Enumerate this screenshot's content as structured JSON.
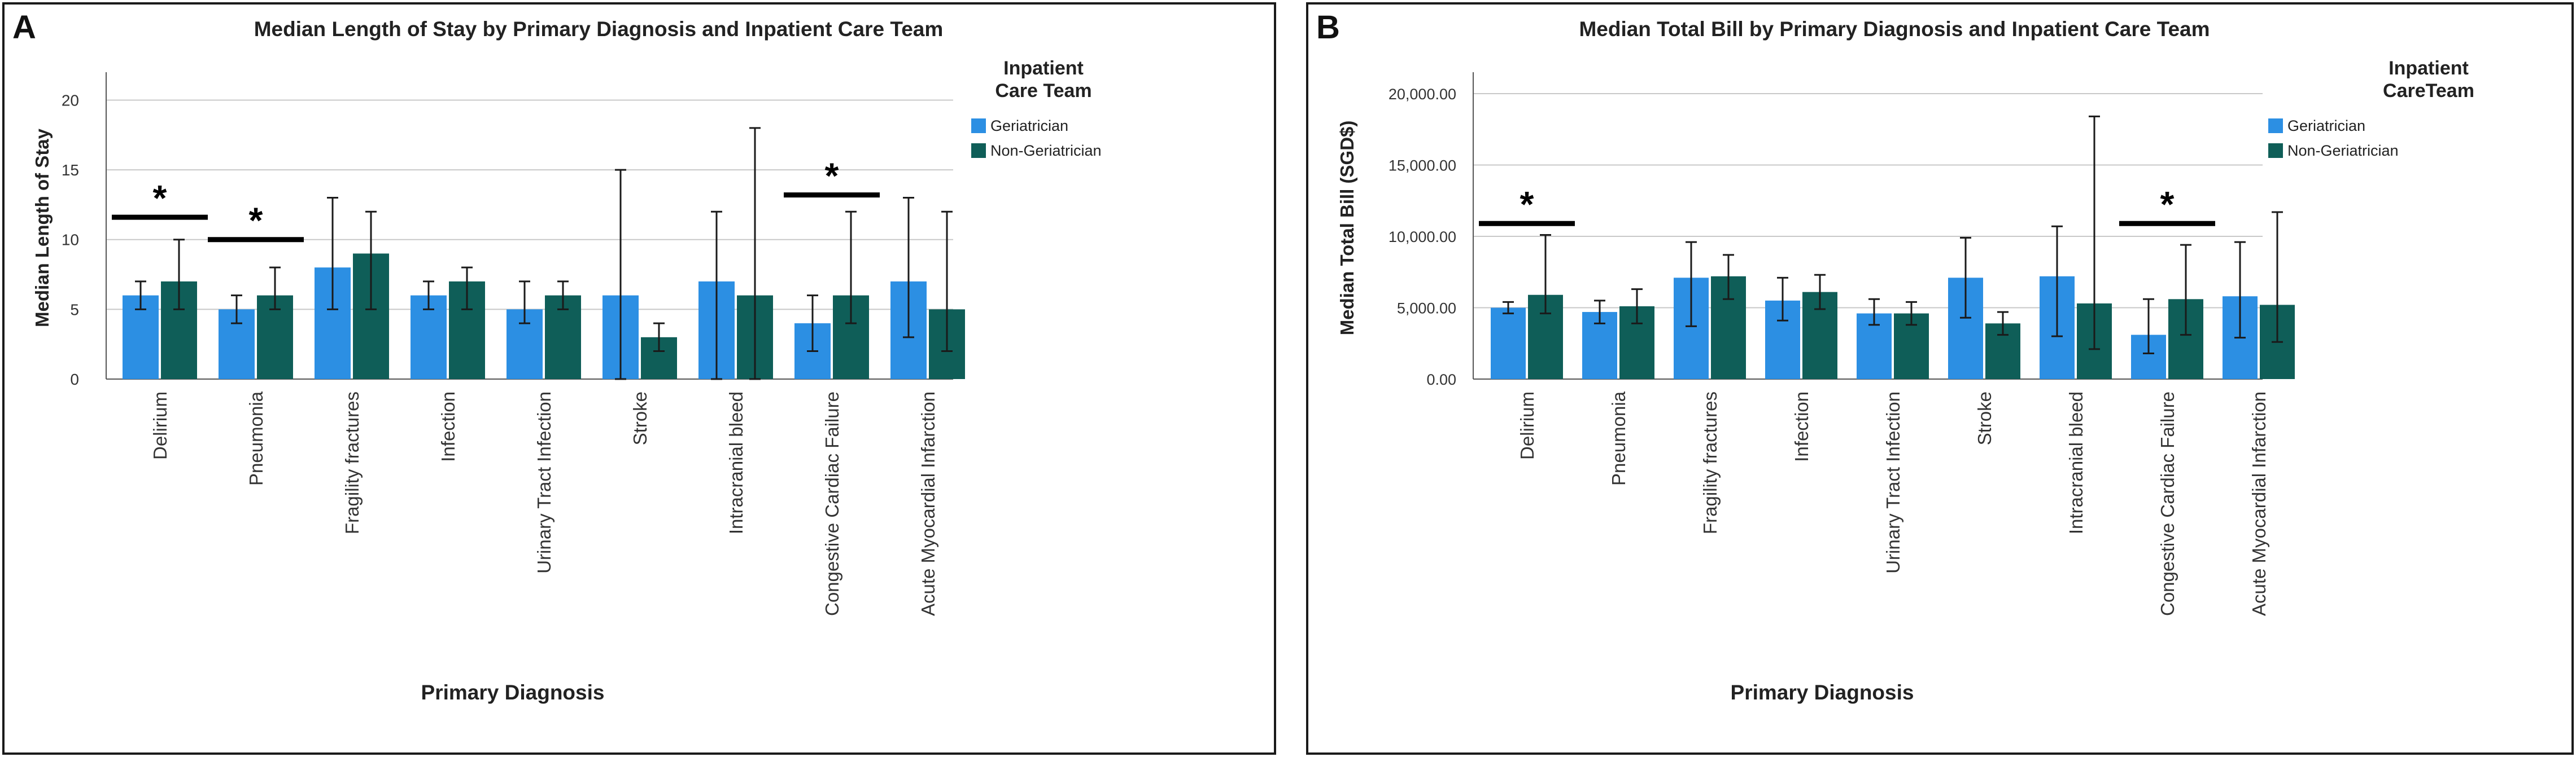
{
  "colors": {
    "geriatrician": "#2c8fe3",
    "non_geriatrician": "#0f5e58",
    "grid": "#c8c8c8",
    "errorbar": "#1a1a1a"
  },
  "chart_data": [
    {
      "panel_letter": "A",
      "type": "bar",
      "title": "Median Length of Stay by Primary Diagnosis and Inpatient Care Team",
      "xlabel": "Primary Diagnosis",
      "ylabel": "Median Length of Stay",
      "ylim": [
        0,
        22
      ],
      "yticks": [
        0,
        5,
        10,
        15,
        20
      ],
      "ytick_labels": [
        "0",
        "5",
        "10",
        "15",
        "20"
      ],
      "legend_title": [
        "Inpatient",
        "Care Team"
      ],
      "legend_position": "top-right",
      "grid": true,
      "categories": [
        "Delirium",
        "Pneumonia",
        "Fragility fractures",
        "Infection",
        "Urinary Tract Infection",
        "Stroke",
        "Intracranial bleed",
        "Congestive Cardiac Failure",
        "Acute Myocardial Infarction"
      ],
      "series": [
        {
          "name": "Geriatrician",
          "values": [
            6,
            5,
            8,
            6,
            5,
            6,
            7,
            4,
            7
          ],
          "error_low": [
            5,
            4,
            5,
            5,
            4,
            0,
            0,
            2,
            3
          ],
          "error_high": [
            7,
            6,
            13,
            7,
            7,
            15,
            12,
            6,
            13
          ]
        },
        {
          "name": "Non-Geriatrician",
          "values": [
            7,
            6,
            9,
            7,
            6,
            3,
            6,
            6,
            5
          ],
          "error_low": [
            5,
            5,
            5,
            5,
            5,
            2,
            0,
            4,
            2
          ],
          "error_high": [
            10,
            8,
            12,
            8,
            7,
            4,
            18,
            12,
            12
          ]
        }
      ],
      "significance": [
        {
          "category_index": 0,
          "label": "*",
          "y": 11.6
        },
        {
          "category_index": 1,
          "label": "*",
          "y": 10
        },
        {
          "category_index": 7,
          "label": "*",
          "y": 13.2
        }
      ]
    },
    {
      "panel_letter": "B",
      "type": "bar",
      "title": "Median Total Bill by Primary Diagnosis and Inpatient Care Team",
      "xlabel": "Primary Diagnosis",
      "ylabel": "Median Total Bill (SGD$)",
      "ylim": [
        0,
        21500
      ],
      "yticks": [
        0,
        5000,
        10000,
        15000,
        20000
      ],
      "ytick_labels": [
        "0.00",
        "5,000.00",
        "10,000.00",
        "15,000.00",
        "20,000.00"
      ],
      "legend_title": [
        "Inpatient",
        "CareTeam"
      ],
      "legend_position": "top-right",
      "grid": true,
      "categories": [
        "Delirium",
        "Pneumonia",
        "Fragility fractures",
        "Infection",
        "Urinary Tract Infection",
        "Stroke",
        "Intracranial bleed",
        "Congestive Cardiac Failure",
        "Acute Myocardial Infarction"
      ],
      "series": [
        {
          "name": "Geriatrician",
          "values": [
            5000,
            4700,
            7100,
            5500,
            4600,
            7100,
            7200,
            3100,
            5800
          ],
          "error_low": [
            4600,
            3900,
            3700,
            4100,
            3800,
            4300,
            3000,
            1800,
            2900
          ],
          "error_high": [
            5400,
            5500,
            9600,
            7100,
            5600,
            9900,
            10700,
            5600,
            9600
          ]
        },
        {
          "name": "Non-Geriatrician",
          "values": [
            5900,
            5100,
            7200,
            6100,
            4600,
            3900,
            5300,
            5600,
            5200
          ],
          "error_low": [
            4600,
            3900,
            5600,
            4900,
            3800,
            3100,
            2100,
            3100,
            2600
          ],
          "error_high": [
            10100,
            6300,
            8700,
            7300,
            5400,
            4700,
            18400,
            9400,
            11700
          ]
        }
      ],
      "significance": [
        {
          "category_index": 0,
          "label": "*",
          "y": 10900
        },
        {
          "category_index": 7,
          "label": "*",
          "y": 10900
        }
      ]
    }
  ]
}
